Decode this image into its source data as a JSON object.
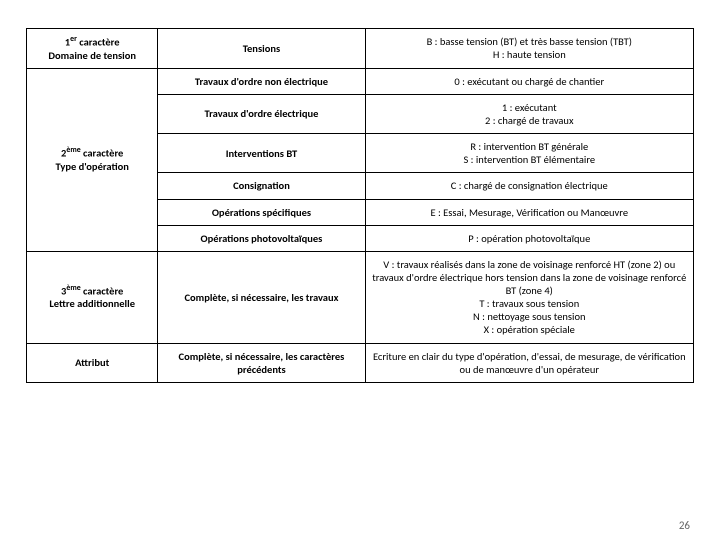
{
  "colors": {
    "border": "#000000",
    "text": "#000000",
    "pagenum": "#666666",
    "bg": "#ffffff"
  },
  "fontsize_pt": 10.5,
  "page_number": "26",
  "rows": {
    "r1": {
      "left": "1<sup>er</sup> caractère\nDomaine de tension",
      "mid": "Tensions",
      "right": "B : basse tension (BT) et très basse tension (TBT)\nH : haute tension"
    },
    "r2left": "2<sup>ème</sup> caractère\nType d'opération",
    "r2": {
      "mid": "Travaux d'ordre non électrique",
      "right": "0 : exécutant ou chargé de chantier"
    },
    "r3": {
      "mid": "Travaux d'ordre électrique",
      "right": "1 : exécutant\n2 : chargé de travaux"
    },
    "r4": {
      "mid": "Interventions BT",
      "right": "R : intervention BT générale\nS : intervention BT élémentaire"
    },
    "r5": {
      "mid": "Consignation",
      "right": "C : chargé de consignation électrique"
    },
    "r6": {
      "mid": "Opérations spécifiques",
      "right": "E : Essai, Mesurage, Vérification ou Manœuvre"
    },
    "r7": {
      "mid": "Opérations photovoltaïques",
      "right": "P : opération photovoltaïque"
    },
    "r8": {
      "left": "3<sup>ème</sup> caractère\nLettre additionnelle",
      "mid": "Complète, si nécessaire, les travaux",
      "right": "V : travaux réalisés dans la zone de voisinage renforcé HT (zone 2) ou travaux d'ordre électrique hors tension dans la zone de voisinage renforcé BT (zone 4)\nT : travaux sous tension\nN : nettoyage sous tension\nX : opération spéciale"
    },
    "r9": {
      "left": "Attribut",
      "mid": "Complète, si nécessaire, les caractères précédents",
      "right": "Ecriture en clair du type d'opération, d'essai, de mesurage, de vérification ou de manœuvre d'un opérateur"
    }
  }
}
